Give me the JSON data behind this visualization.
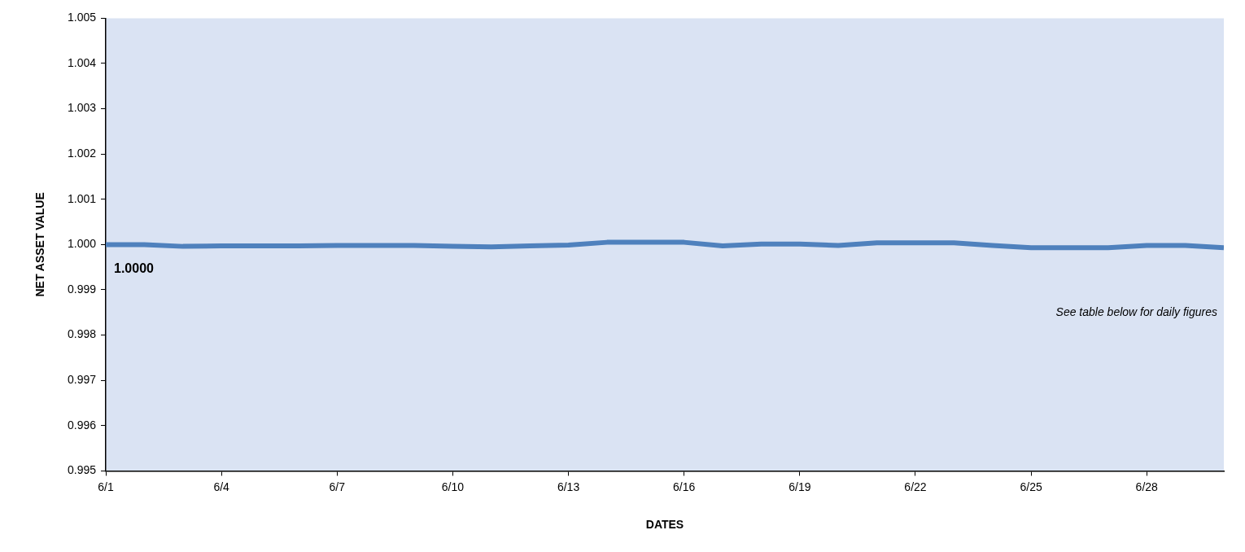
{
  "chart_data": {
    "type": "line",
    "xlabel": "DATES",
    "ylabel": "NET ASSET VALUE",
    "x": [
      "--06-01",
      "--06-02",
      "--06-03",
      "--06-04",
      "--06-05",
      "--06-06",
      "--06-07",
      "--06-08",
      "--06-09",
      "--06-10",
      "--06-11",
      "--06-12",
      "--06-13",
      "--06-14",
      "--06-15",
      "--06-16",
      "--06-17",
      "--06-18",
      "--06-19",
      "--06-20",
      "--06-21",
      "--06-22",
      "--06-23",
      "--06-24",
      "--06-25",
      "--06-26",
      "--06-27",
      "--06-28",
      "--06-29",
      "--06-30"
    ],
    "series": [
      {
        "color": "#4f81bd",
        "values": [
          1.0,
          1.0,
          0.99996,
          0.99997,
          0.99997,
          0.99997,
          0.99998,
          0.99998,
          0.99998,
          0.99996,
          0.99995,
          0.99997,
          0.99999,
          1.00005,
          1.00005,
          1.00005,
          0.99997,
          1.00001,
          1.00001,
          0.99998,
          1.00004,
          1.00004,
          1.00004,
          0.99998,
          0.99993,
          0.99993,
          0.99993,
          0.99998,
          0.99998,
          0.99993
        ]
      }
    ],
    "xlim": [
      "--06-01",
      "--06-30"
    ],
    "xticks": [
      {
        "value": "--06-01",
        "label": "6/1"
      },
      {
        "value": "--06-04",
        "label": "6/4"
      },
      {
        "value": "--06-07",
        "label": "6/7"
      },
      {
        "value": "--06-10",
        "label": "6/10"
      },
      {
        "value": "--06-13",
        "label": "6/13"
      },
      {
        "value": "--06-16",
        "label": "6/16"
      },
      {
        "value": "--06-19",
        "label": "6/19"
      },
      {
        "value": "--06-22",
        "label": "6/22"
      },
      {
        "value": "--06-25",
        "label": "6/25"
      },
      {
        "value": "--06-28",
        "label": "6/28"
      }
    ],
    "ylim": [
      0.995,
      1.005
    ],
    "yticks": [
      {
        "value": 0.995,
        "label": "0.995"
      },
      {
        "value": 0.996,
        "label": "0.996"
      },
      {
        "value": 0.997,
        "label": "0.997"
      },
      {
        "value": 0.998,
        "label": "0.998"
      },
      {
        "value": 0.999,
        "label": "0.999"
      },
      {
        "value": 1.0,
        "label": "1.000"
      },
      {
        "value": 1.001,
        "label": "1.001"
      },
      {
        "value": 1.002,
        "label": "1.002"
      },
      {
        "value": 1.003,
        "label": "1.003"
      },
      {
        "value": 1.004,
        "label": "1.004"
      },
      {
        "value": 1.005,
        "label": "1.005"
      }
    ],
    "legend": false,
    "marker": "none",
    "line_style": "solid",
    "annotations": [
      {
        "text": "1.0000",
        "x": "--06-01",
        "y": 1.0
      },
      "See table below for daily figures"
    ]
  }
}
